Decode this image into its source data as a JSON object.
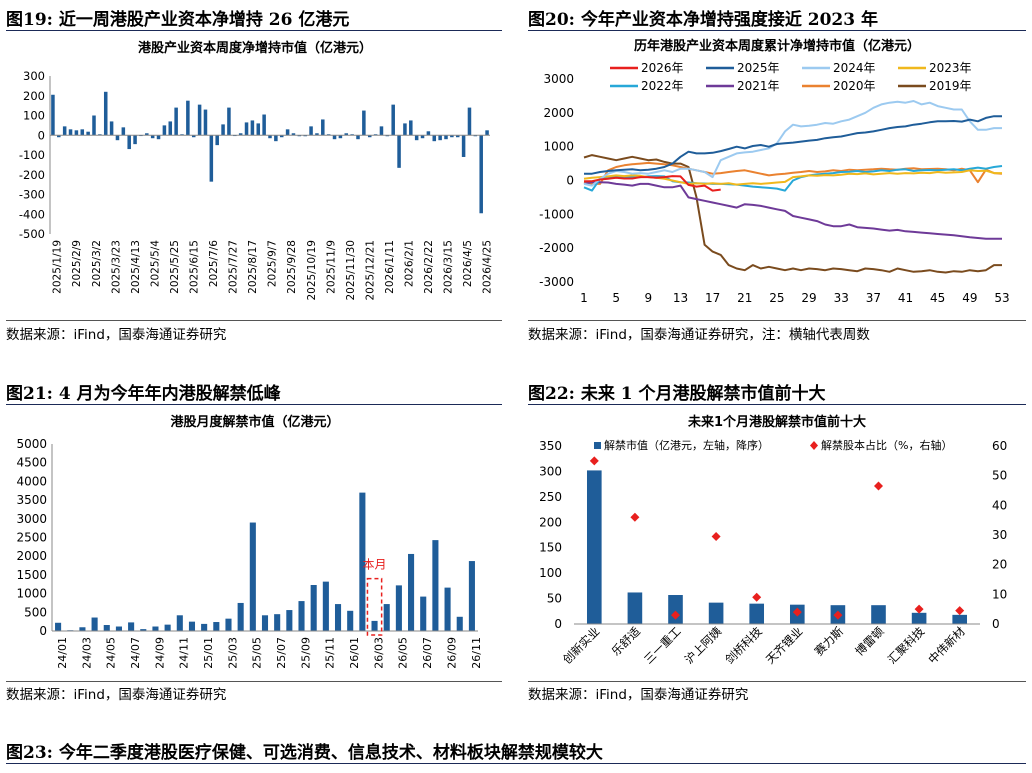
{
  "figures": [
    {
      "title": "图19:  近一周港股产业资本净增持 26 亿港元",
      "source": "数据来源：iFind，国泰海通证券研究"
    },
    {
      "title": "图20:  今年产业资本净增持强度接近 2023 年",
      "source": "数据来源：iFind，国泰海通证券研究，注：横轴代表周数"
    },
    {
      "title": "图21:  4 月为今年年内港股解禁低峰",
      "source": "数据来源：iFind，国泰海通证券研究"
    },
    {
      "title": "图22:  未来 1 个月港股解禁市值前十大",
      "source": "数据来源：iFind，国泰海通证券研究"
    }
  ],
  "bottom_title": "图23:  今年二季度港股医疗保健、可选消费、信息技术、材料板块解禁规模较大",
  "chart_data": [
    {
      "type": "bar",
      "title": "港股产业资本周度净增持市值（亿港元）",
      "ylim": [
        -500,
        300
      ],
      "yticks": [
        300,
        200,
        100,
        0,
        -100,
        -200,
        -300,
        -400,
        -500
      ],
      "xticks": [
        "2025/1/19",
        "2025/2/9",
        "2025/3/2",
        "2025/3/23",
        "2025/4/13",
        "2025/5/4",
        "2025/5/25",
        "2025/6/15",
        "2025/7/6",
        "2025/7/27",
        "2025/8/17",
        "2025/9/7",
        "2025/9/28",
        "2025/10/19",
        "2025/11/9",
        "2025/11/30",
        "2025/12/21",
        "2026/1/11",
        "2026/2/1",
        "2026/2/22",
        "2026/3/15",
        "2026/4/5",
        "2026/4/25"
      ],
      "color": "#1f5d99",
      "values": [
        205,
        -10,
        45,
        30,
        25,
        30,
        18,
        100,
        5,
        220,
        70,
        -25,
        40,
        -70,
        -45,
        0,
        10,
        -15,
        -20,
        50,
        70,
        140,
        5,
        175,
        -10,
        155,
        130,
        -235,
        -50,
        55,
        140,
        0,
        10,
        65,
        75,
        60,
        105,
        -15,
        -30,
        -10,
        30,
        10,
        -5,
        -5,
        45,
        10,
        80,
        5,
        -20,
        -15,
        10,
        5,
        -20,
        125,
        -10,
        5,
        45,
        -5,
        155,
        -165,
        60,
        75,
        -25,
        -15,
        20,
        -30,
        -25,
        -20,
        -10,
        -10,
        -110,
        140,
        -5,
        -395,
        25
      ]
    },
    {
      "type": "line",
      "title": "历年港股产业资本周度累计净增持市值（亿港元）",
      "ylim": [
        -3000,
        3000
      ],
      "yticks": [
        3000,
        2000,
        1000,
        0,
        -1000,
        -2000,
        -3000
      ],
      "xlim": [
        1,
        53
      ],
      "xticks": [
        1,
        5,
        9,
        13,
        17,
        21,
        25,
        29,
        33,
        37,
        41,
        45,
        49,
        53
      ],
      "series": [
        {
          "name": "2026年",
          "color": "#e8201e",
          "values": [
            -20,
            -20,
            30,
            50,
            80,
            60,
            60,
            100,
            100,
            80,
            100,
            130,
            120,
            -130,
            -180,
            -150,
            -300,
            -270
          ]
        },
        {
          "name": "2025年",
          "color": "#1f5d99",
          "values": [
            200,
            200,
            250,
            280,
            300,
            320,
            330,
            300,
            320,
            350,
            400,
            500,
            700,
            850,
            800,
            800,
            820,
            870,
            930,
            1000,
            950,
            1020,
            1050,
            1000,
            1080,
            1100,
            1120,
            1150,
            1180,
            1200,
            1250,
            1280,
            1300,
            1350,
            1400,
            1420,
            1450,
            1500,
            1550,
            1580,
            1600,
            1650,
            1680,
            1720,
            1750,
            1750,
            1760,
            1740,
            1800,
            1750,
            1850,
            1900,
            1900
          ]
        },
        {
          "name": "2024年",
          "color": "#9ccaf0",
          "values": [
            -100,
            -150,
            50,
            200,
            280,
            250,
            200,
            220,
            200,
            250,
            300,
            250,
            350,
            350,
            300,
            250,
            100,
            600,
            700,
            800,
            830,
            850,
            900,
            950,
            1100,
            1450,
            1650,
            1600,
            1620,
            1650,
            1700,
            1680,
            1750,
            1800,
            1900,
            2000,
            2150,
            2250,
            2300,
            2330,
            2300,
            2350,
            2250,
            2300,
            2200,
            2150,
            2100,
            2100,
            1750,
            1500,
            1500,
            1550,
            1550
          ]
        },
        {
          "name": "2023年",
          "color": "#f0b81d",
          "values": [
            50,
            80,
            100,
            120,
            150,
            130,
            150,
            140,
            100,
            80,
            50,
            0,
            -50,
            -100,
            -80,
            -100,
            -80,
            -100,
            -80,
            -120,
            -100,
            -80,
            -100,
            -80,
            -60,
            -40,
            100,
            120,
            150,
            140,
            160,
            150,
            170,
            200,
            190,
            210,
            180,
            200,
            220,
            200,
            220,
            210,
            230,
            220,
            250,
            230,
            240,
            250,
            300,
            280,
            290,
            220,
            220
          ]
        },
        {
          "name": "2022年",
          "color": "#27a8d8",
          "values": [
            -200,
            -300,
            50,
            80,
            100,
            120,
            110,
            100,
            120,
            130,
            120,
            -20,
            -50,
            -60,
            -80,
            -90,
            -100,
            -100,
            -110,
            -120,
            -150,
            -180,
            -200,
            -220,
            -240,
            -300,
            0,
            100,
            150,
            180,
            200,
            220,
            250,
            260,
            280,
            250,
            270,
            300,
            280,
            320,
            330,
            280,
            300,
            310,
            300,
            320,
            330,
            300,
            350,
            380,
            350,
            400,
            430
          ]
        },
        {
          "name": "2021年",
          "color": "#6e3a98",
          "values": [
            -100,
            -50,
            -50,
            -60,
            -100,
            -120,
            -150,
            -100,
            -100,
            -150,
            -200,
            -200,
            -150,
            -500,
            -550,
            -600,
            -650,
            -700,
            -750,
            -800,
            -700,
            -720,
            -750,
            -800,
            -850,
            -900,
            -1050,
            -1100,
            -1150,
            -1200,
            -1300,
            -1350,
            -1350,
            -1300,
            -1380,
            -1400,
            -1420,
            -1450,
            -1480,
            -1460,
            -1500,
            -1520,
            -1540,
            -1560,
            -1580,
            -1600,
            -1620,
            -1650,
            -1680,
            -1700,
            -1720,
            -1720,
            -1720
          ]
        },
        {
          "name": "2020年",
          "color": "#ea8230",
          "values": [
            -50,
            -100,
            -100,
            300,
            400,
            450,
            480,
            500,
            520,
            500,
            480,
            450,
            400,
            350,
            300,
            250,
            200,
            220,
            250,
            280,
            300,
            250,
            200,
            150,
            180,
            200,
            230,
            250,
            280,
            250,
            270,
            300,
            280,
            320,
            300,
            320,
            330,
            350,
            330,
            320,
            350,
            360,
            330,
            340,
            350,
            330,
            300,
            350,
            300,
            -50,
            320,
            220,
            200
          ]
        },
        {
          "name": "2019年",
          "color": "#7a4b1e",
          "values": [
            680,
            750,
            700,
            650,
            600,
            650,
            700,
            650,
            600,
            620,
            550,
            500,
            500,
            400,
            -500,
            -1900,
            -2100,
            -2200,
            -2500,
            -2600,
            -2650,
            -2500,
            -2600,
            -2550,
            -2600,
            -2650,
            -2600,
            -2650,
            -2600,
            -2620,
            -2650,
            -2600,
            -2620,
            -2650,
            -2680,
            -2600,
            -2620,
            -2650,
            -2700,
            -2600,
            -2650,
            -2700,
            -2680,
            -2650,
            -2700,
            -2720,
            -2680,
            -2700,
            -2650,
            -2680,
            -2650,
            -2500,
            -2500
          ]
        }
      ]
    },
    {
      "type": "bar",
      "title": "港股月度解禁市值（亿港元）",
      "ylim": [
        0,
        5000
      ],
      "yticks": [
        5000,
        4500,
        4000,
        3500,
        3000,
        2500,
        2000,
        1500,
        1000,
        500,
        0
      ],
      "xticks": [
        "24/01",
        "24/03",
        "24/05",
        "24/07",
        "24/09",
        "24/11",
        "25/01",
        "25/03",
        "25/05",
        "25/07",
        "25/09",
        "25/11",
        "26/01",
        "26/03",
        "26/05",
        "26/07",
        "26/09",
        "26/11"
      ],
      "color": "#1f5d99",
      "values": [
        220,
        20,
        100,
        360,
        160,
        120,
        230,
        50,
        120,
        170,
        420,
        250,
        190,
        240,
        330,
        750,
        2900,
        420,
        450,
        560,
        800,
        1230,
        1320,
        720,
        540,
        3700,
        270,
        720,
        1220,
        2060,
        920,
        2430,
        1160,
        380,
        1870
      ],
      "annotation": "本月",
      "annotation_index": 26
    },
    {
      "type": "bar",
      "title": "未来1个月港股解禁市值前十大",
      "ylim": [
        0,
        350
      ],
      "yticks": [
        350,
        300,
        250,
        200,
        150,
        100,
        50,
        0
      ],
      "y2lim": [
        0,
        60
      ],
      "y2ticks": [
        60,
        50,
        40,
        30,
        20,
        10,
        0
      ],
      "categories": [
        "创新实业",
        "乐舒适",
        "三一重工",
        "沪上阿姨",
        "剑桥科技",
        "天齐锂业",
        "赛力斯",
        "博雷顿",
        "汇聚科技",
        "中伟新材"
      ],
      "series": [
        {
          "name": "解禁市值（亿港元，左轴，降序）",
          "color": "#1f5d99",
          "values": [
            302,
            62,
            57,
            42,
            40,
            38,
            37,
            37,
            22,
            18
          ]
        },
        {
          "name": "解禁股本占比（%，右轴）",
          "color": "#e8201e",
          "values": [
            55,
            36,
            3,
            29.5,
            9,
            4,
            3,
            46.5,
            5,
            4.5
          ]
        }
      ]
    }
  ]
}
